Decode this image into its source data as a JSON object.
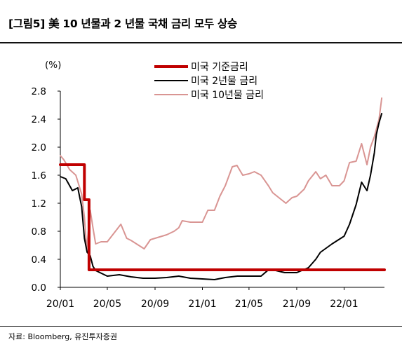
{
  "figure": {
    "title": "[그림5] 美 10 년물과 2 년물 국채 금리 모두 상승",
    "source": "자료: Bloomberg, 유진투자증권"
  },
  "chart_data": {
    "type": "line",
    "unit_label": "(%)",
    "ylim": [
      0,
      2.8
    ],
    "yticks": [
      0.0,
      0.4,
      0.8,
      1.2,
      1.6,
      2.0,
      2.4,
      2.8
    ],
    "xlim": [
      "2020-01-01",
      "2022-04-15"
    ],
    "xticks": [
      "20/01",
      "20/05",
      "20/09",
      "21/01",
      "21/05",
      "21/09",
      "22/01"
    ],
    "grid": false,
    "legend_position": "top-center",
    "series": [
      {
        "name": "미국 기준금리",
        "color": "#c00000",
        "step": true,
        "x": [
          "2020-01-01",
          "2020-03-03",
          "2020-03-15",
          "2022-03-16",
          "2022-04-15"
        ],
        "y": [
          1.75,
          1.25,
          0.25,
          0.25,
          0.25
        ]
      },
      {
        "name": "미국 2년물 금리",
        "color": "#000000",
        "step": false,
        "x": [
          "2020-01-01",
          "2020-01-15",
          "2020-02-01",
          "2020-02-15",
          "2020-02-25",
          "2020-03-03",
          "2020-03-10",
          "2020-03-18",
          "2020-03-25",
          "2020-04-01",
          "2020-05-01",
          "2020-06-01",
          "2020-07-01",
          "2020-08-01",
          "2020-09-01",
          "2020-10-01",
          "2020-11-01",
          "2020-12-01",
          "2021-01-01",
          "2021-02-01",
          "2021-03-01",
          "2021-04-01",
          "2021-05-01",
          "2021-06-01",
          "2021-06-20",
          "2021-07-01",
          "2021-08-01",
          "2021-09-01",
          "2021-10-01",
          "2021-10-20",
          "2021-11-01",
          "2021-12-01",
          "2022-01-01",
          "2022-01-15",
          "2022-02-01",
          "2022-02-15",
          "2022-03-01",
          "2022-03-10",
          "2022-03-20",
          "2022-03-25",
          "2022-04-01",
          "2022-04-08"
        ],
        "y": [
          1.58,
          1.55,
          1.38,
          1.42,
          1.15,
          0.7,
          0.5,
          0.45,
          0.3,
          0.24,
          0.16,
          0.18,
          0.15,
          0.13,
          0.13,
          0.14,
          0.16,
          0.13,
          0.12,
          0.11,
          0.14,
          0.16,
          0.16,
          0.16,
          0.25,
          0.25,
          0.21,
          0.21,
          0.28,
          0.4,
          0.5,
          0.62,
          0.73,
          0.9,
          1.18,
          1.5,
          1.38,
          1.6,
          1.92,
          2.18,
          2.35,
          2.48
        ]
      },
      {
        "name": "미국 10년물 금리",
        "color": "#d99593",
        "step": false,
        "x": [
          "2020-01-01",
          "2020-01-10",
          "2020-01-25",
          "2020-02-10",
          "2020-02-25",
          "2020-03-03",
          "2020-03-09",
          "2020-03-18",
          "2020-03-25",
          "2020-04-01",
          "2020-04-15",
          "2020-05-01",
          "2020-06-05",
          "2020-06-20",
          "2020-07-01",
          "2020-08-04",
          "2020-08-20",
          "2020-09-01",
          "2020-10-01",
          "2020-10-20",
          "2020-11-01",
          "2020-11-10",
          "2020-12-01",
          "2021-01-01",
          "2021-01-15",
          "2021-02-01",
          "2021-02-15",
          "2021-03-01",
          "2021-03-19",
          "2021-03-31",
          "2021-04-15",
          "2021-05-01",
          "2021-05-15",
          "2021-06-01",
          "2021-06-20",
          "2021-07-01",
          "2021-08-04",
          "2021-08-20",
          "2021-09-01",
          "2021-09-20",
          "2021-10-01",
          "2021-10-20",
          "2021-11-01",
          "2021-11-15",
          "2021-12-01",
          "2021-12-20",
          "2022-01-01",
          "2022-01-15",
          "2022-02-01",
          "2022-02-15",
          "2022-03-01",
          "2022-03-10",
          "2022-03-20",
          "2022-04-01",
          "2022-04-08"
        ],
        "y": [
          1.88,
          1.82,
          1.68,
          1.6,
          1.33,
          1.0,
          0.54,
          1.1,
          0.85,
          0.62,
          0.65,
          0.65,
          0.9,
          0.7,
          0.67,
          0.55,
          0.68,
          0.7,
          0.75,
          0.8,
          0.85,
          0.95,
          0.93,
          0.93,
          1.1,
          1.1,
          1.3,
          1.45,
          1.72,
          1.74,
          1.6,
          1.62,
          1.65,
          1.6,
          1.45,
          1.35,
          1.2,
          1.28,
          1.3,
          1.4,
          1.52,
          1.65,
          1.55,
          1.6,
          1.45,
          1.45,
          1.52,
          1.78,
          1.8,
          2.05,
          1.75,
          2.0,
          2.15,
          2.4,
          2.7
        ]
      }
    ]
  }
}
